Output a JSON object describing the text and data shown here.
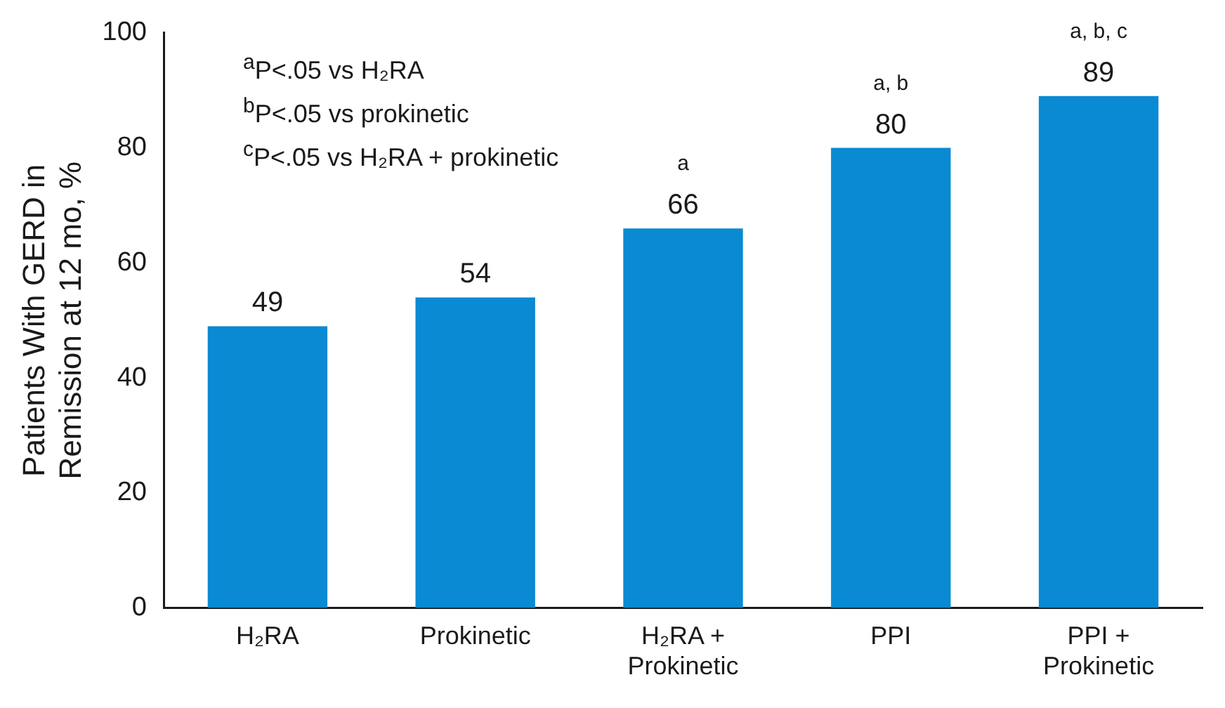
{
  "chart_data": {
    "type": "bar",
    "ylabel": "Patients With GERD in Remission at 12 mo, %",
    "categories": [
      "H₂RA",
      "Prokinetic",
      "H₂RA + Prokinetic",
      "PPI",
      "PPI + Prokinetic"
    ],
    "values": [
      49,
      54,
      66,
      80,
      89
    ],
    "color": "#0a8ad2",
    "ylim": [
      0,
      100
    ],
    "yticks": [
      0,
      20,
      40,
      60,
      80,
      100
    ],
    "grid": false,
    "legend": false,
    "data_labels": true,
    "annotations": [
      "$^{a}$P<.05 vs H₂RA",
      "$^{b}$P<.05 vs prokinetic",
      "$^{c}$P<.05 vs H₂RA + prokinetic",
      {
        "text": "a",
        "x": "H₂RA + Prokinetic",
        "y": 66
      },
      {
        "text": "a, b",
        "x": "PPI",
        "y": 80
      },
      {
        "text": "a, b, c",
        "x": "PPI + Prokinetic",
        "y": 89
      }
    ]
  }
}
